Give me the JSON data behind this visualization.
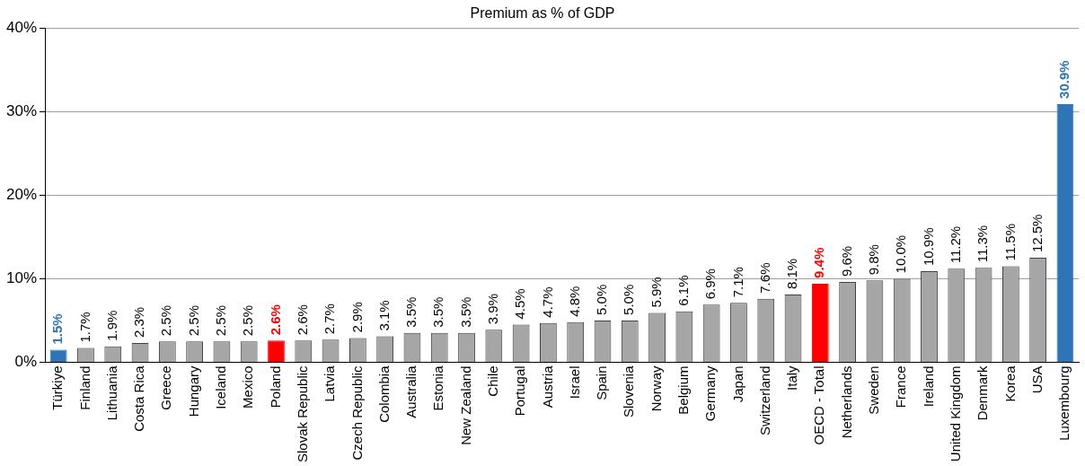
{
  "chart_data": {
    "type": "bar",
    "title": "Premium as % of GDP",
    "categories": [
      "Türkiye",
      "Finland",
      "Lithuania",
      "Costa Rica",
      "Greece",
      "Hungary",
      "Iceland",
      "Mexico",
      "Poland",
      "Slovak Republic",
      "Latvia",
      "Czech Republic",
      "Colombia",
      "Australia",
      "Estonia",
      "New Zealand",
      "Chile",
      "Portugal",
      "Austria",
      "Israel",
      "Spain",
      "Slovenia",
      "Norway",
      "Belgium",
      "Germany",
      "Japan",
      "Switzerland",
      "Italy",
      "OECD - Total",
      "Netherlands",
      "Sweden",
      "France",
      "Ireland",
      "United Kingdom",
      "Denmark",
      "Korea",
      "USA",
      "Luxembourg"
    ],
    "values": [
      1.5,
      1.7,
      1.9,
      2.3,
      2.5,
      2.5,
      2.5,
      2.5,
      2.6,
      2.6,
      2.7,
      2.9,
      3.1,
      3.5,
      3.5,
      3.5,
      3.9,
      4.5,
      4.7,
      4.8,
      5.0,
      5.0,
      5.9,
      6.1,
      6.9,
      7.1,
      7.6,
      8.1,
      9.4,
      9.6,
      9.8,
      10.0,
      10.9,
      11.2,
      11.3,
      11.5,
      12.5,
      30.9
    ],
    "value_labels": [
      "1.5%",
      "1.7%",
      "1.9%",
      "2.3%",
      "2.5%",
      "2.5%",
      "2.5%",
      "2.5%",
      "2.6%",
      "2.6%",
      "2.7%",
      "2.9%",
      "3.1%",
      "3.5%",
      "3.5%",
      "3.5%",
      "3.9%",
      "4.5%",
      "4.7%",
      "4.8%",
      "5.0%",
      "5.0%",
      "5.9%",
      "6.1%",
      "6.9%",
      "7.1%",
      "7.6%",
      "8.1%",
      "9.4%",
      "9.6%",
      "9.8%",
      "10.0%",
      "10.9%",
      "11.2%",
      "11.3%",
      "11.5%",
      "12.5%",
      "30.9%"
    ],
    "colors": [
      "#2e75b6",
      "#a6a6a6",
      "#a6a6a6",
      "#a6a6a6",
      "#a6a6a6",
      "#a6a6a6",
      "#a6a6a6",
      "#a6a6a6",
      "#ff0000",
      "#a6a6a6",
      "#a6a6a6",
      "#a6a6a6",
      "#a6a6a6",
      "#a6a6a6",
      "#a6a6a6",
      "#a6a6a6",
      "#a6a6a6",
      "#a6a6a6",
      "#a6a6a6",
      "#a6a6a6",
      "#a6a6a6",
      "#a6a6a6",
      "#a6a6a6",
      "#a6a6a6",
      "#a6a6a6",
      "#a6a6a6",
      "#a6a6a6",
      "#a6a6a6",
      "#ff0000",
      "#a6a6a6",
      "#a6a6a6",
      "#a6a6a6",
      "#a6a6a6",
      "#a6a6a6",
      "#a6a6a6",
      "#a6a6a6",
      "#a6a6a6",
      "#2e75b6"
    ],
    "ylim": [
      0,
      40
    ],
    "yticks": [
      {
        "value": 0,
        "label": "0%"
      },
      {
        "value": 10,
        "label": "10%"
      },
      {
        "value": 20,
        "label": "20%"
      },
      {
        "value": 30,
        "label": "30%"
      },
      {
        "value": 40,
        "label": "40%"
      }
    ],
    "grid": "y",
    "legend": false
  }
}
